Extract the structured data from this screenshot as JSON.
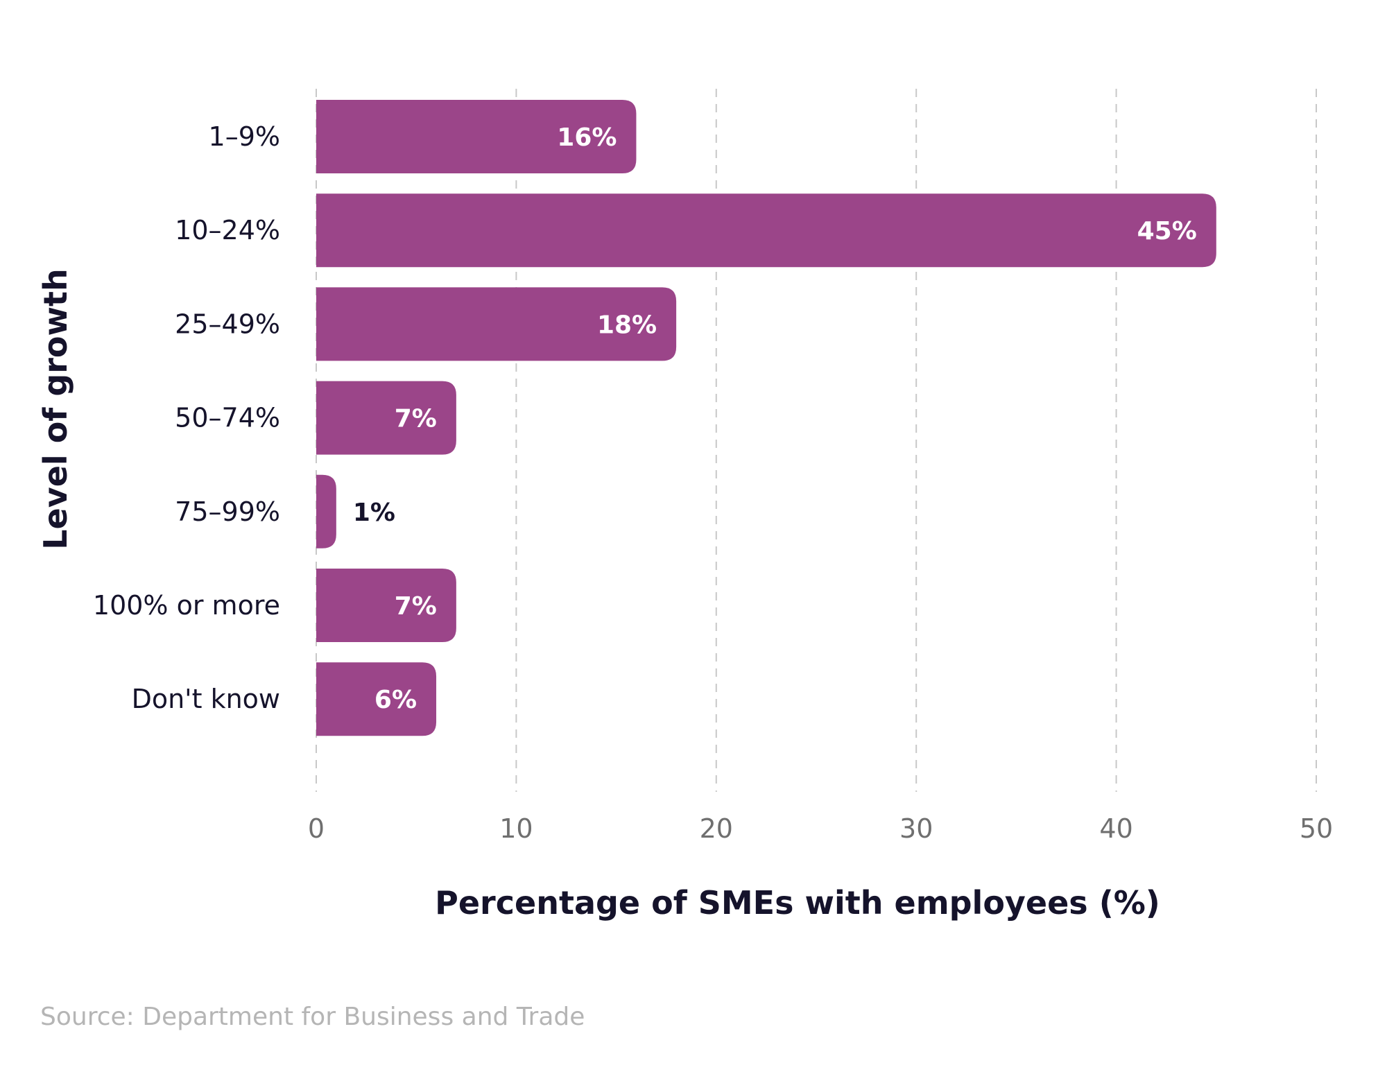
{
  "chart_data": {
    "type": "bar",
    "orientation": "horizontal",
    "categories": [
      "1–9%",
      "10–24%",
      "25–49%",
      "50–74%",
      "75–99%",
      "100% or more",
      "Don't know"
    ],
    "values": [
      16,
      45,
      18,
      7,
      1,
      7,
      6
    ],
    "data_labels": [
      "16%",
      "45%",
      "18%",
      "7%",
      "1%",
      "7%",
      "6%"
    ],
    "xlabel": "Percentage of SMEs with employees (%)",
    "ylabel": "Level of growth",
    "xlim": [
      0,
      50
    ],
    "xticks": [
      "0",
      "10",
      "20",
      "30",
      "40",
      "50"
    ],
    "grid": "vertical dashed",
    "legend": "none",
    "bar_color": "#9b4589",
    "label_inside_color": "#ffffff",
    "label_outside_color": "#15132b"
  },
  "source": "Source: Department for Business and Trade"
}
